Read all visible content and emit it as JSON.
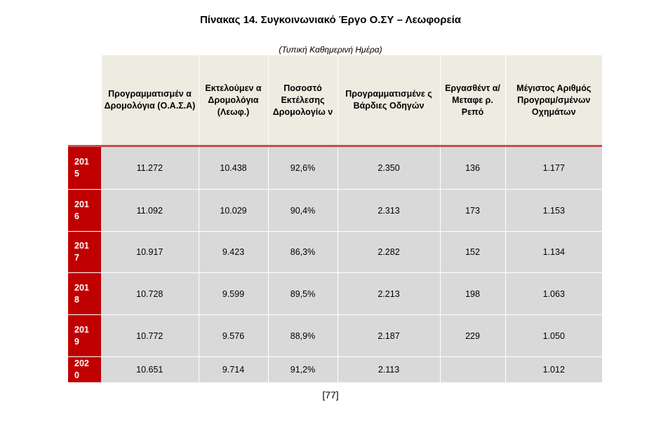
{
  "document": {
    "title": "Πίνακας 14. Συγκοινωνιακό Έργο Ο.ΣΥ – Λεωφορεία",
    "subtitle": "(Τυπική  Καθημερινή Ημέρα)",
    "page_number": "[77]"
  },
  "table": {
    "headers": [
      "",
      "Προγραμματισμέν α Δρομολόγια (Ο.Α.Σ.Α)",
      "Εκτελούμεν α Δρομολόγια (Λεωφ.)",
      "Ποσοστό Εκτέλεσης Δρομολογίω ν",
      "Προγραμματισμένε ς Βάρδιες Οδηγών",
      "Εργασθέντ α/Μεταφε ρ. Ρεπό",
      "Μέγιστος Αριθμός Προγραμ/σμένων Οχημάτων"
    ],
    "rows": [
      {
        "year": "2015",
        "cells": [
          "11.272",
          "10.438",
          "92,6%",
          "2.350",
          "136",
          "1.177"
        ]
      },
      {
        "year": "2016",
        "cells": [
          "11.092",
          "10.029",
          "90,4%",
          "2.313",
          "173",
          "1.153"
        ]
      },
      {
        "year": "2017",
        "cells": [
          "10.917",
          "9.423",
          "86,3%",
          "2.282",
          "152",
          "1.134"
        ]
      },
      {
        "year": "2018",
        "cells": [
          "10.728",
          "9.599",
          "89,5%",
          "2.213",
          "198",
          "1.063"
        ]
      },
      {
        "year": "2019",
        "cells": [
          "10.772",
          "9.576",
          "88,9%",
          "2.187",
          "229",
          "1.050"
        ]
      },
      {
        "year": "2020",
        "cells": [
          "10.651",
          "9.714",
          "91,2%",
          "2.113",
          "",
          "1.012"
        ]
      }
    ]
  },
  "colors": {
    "header_background": "#eeece1",
    "year_background": "#c00000",
    "cell_background": "#d9d9d9",
    "accent_line": "#c0504d"
  }
}
